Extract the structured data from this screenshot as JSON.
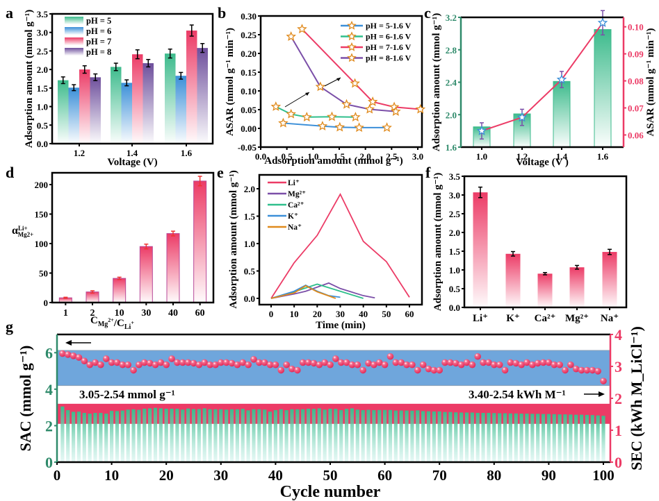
{
  "chart_data": [
    {
      "panel": "a",
      "type": "bar",
      "xlabel": "Voltage (V)",
      "ylabel": "Adsorption amount (mmol g⁻¹)",
      "categories": [
        "1.2",
        "1.4",
        "1.6"
      ],
      "ylim": [
        0,
        3.5
      ],
      "yticks": [
        "0.0",
        "0.5",
        "1.0",
        "1.5",
        "2.0",
        "2.5",
        "3.0",
        "3.5"
      ],
      "legend_position": "top-left",
      "series": [
        {
          "name": "pH = 5",
          "color": "#3dbb8c",
          "values": [
            1.71,
            2.07,
            2.43
          ],
          "errors": [
            0.09,
            0.1,
            0.12
          ]
        },
        {
          "name": "pH = 6",
          "color": "#3b8fd8",
          "values": [
            1.51,
            1.64,
            1.83
          ],
          "errors": [
            0.08,
            0.08,
            0.09
          ]
        },
        {
          "name": "pH = 7",
          "color": "#ec3b66",
          "values": [
            2.0,
            2.41,
            3.05
          ],
          "errors": [
            0.1,
            0.12,
            0.15
          ]
        },
        {
          "name": "pH = 8",
          "color": "#6e4f9c",
          "values": [
            1.79,
            2.17,
            2.58
          ],
          "errors": [
            0.09,
            0.1,
            0.12
          ]
        }
      ]
    },
    {
      "panel": "b",
      "type": "line",
      "xlabel": "Adsorption amount (mmol g⁻¹)",
      "ylabel": "ASAR (mmol g⁻¹ min⁻¹)",
      "xlim": [
        0,
        3.1
      ],
      "ylim": [
        -0.05,
        0.3
      ],
      "xticks": [
        "0.0",
        "0.5",
        "1.0",
        "1.5",
        "2.0",
        "2.5",
        "3.0"
      ],
      "yticks": [
        "-0.05",
        "0.00",
        "0.05",
        "0.10",
        "0.15",
        "0.20",
        "0.25",
        "0.30"
      ],
      "legend_position": "top-right",
      "marker_color": "#e08a1c",
      "series": [
        {
          "name": "pH = 5-1.6 V",
          "color": "#3b8fd8",
          "x": [
            0.43,
            1.18,
            1.51,
            1.88,
            2.41
          ],
          "y": [
            0.014,
            0.006,
            0.003,
            0.002,
            0.002
          ]
        },
        {
          "name": "pH = 6-1.6 V",
          "color": "#2fbf8c",
          "x": [
            0.29,
            0.58,
            0.88,
            1.36,
            1.81
          ],
          "y": [
            0.058,
            0.038,
            0.03,
            0.031,
            0.03
          ]
        },
        {
          "name": "pH = 7-1.6 V",
          "color": "#ec3b66",
          "x": [
            0.79,
            1.8,
            2.14,
            2.55,
            3.05
          ],
          "y": [
            0.265,
            0.12,
            0.071,
            0.057,
            0.051
          ]
        },
        {
          "name": "pH = 8-1.6 V",
          "color": "#7b4fa8",
          "x": [
            0.58,
            1.14,
            1.64,
            2.08,
            2.58
          ],
          "y": [
            0.245,
            0.111,
            0.064,
            0.051,
            0.045
          ]
        }
      ]
    },
    {
      "panel": "c",
      "type": "bar",
      "xlabel": "Voltage (V )",
      "ylabel": "Adsorption amount (mmol g⁻¹)",
      "ylabel_right": "ASAR (mmol g⁻¹ min⁻¹)",
      "categories": [
        "1.0",
        "1.2",
        "1.4",
        "1.6"
      ],
      "ylim": [
        1.6,
        3.2
      ],
      "yticks": [
        "1.6",
        "2.0",
        "2.4",
        "2.8",
        "3.2"
      ],
      "ylim_right": [
        0.0555,
        0.1035
      ],
      "yticks_right": [
        "0.06",
        "0.07",
        "0.08",
        "0.09",
        "0.10"
      ],
      "bar_color": "#3dbb8c",
      "line_color": "#ec3b66",
      "bars": [
        1.85,
        2.01,
        2.41,
        3.05
      ],
      "line_values": [
        0.0615,
        0.0665,
        0.0805,
        0.1015
      ],
      "line_errors": [
        0.003,
        0.003,
        0.003,
        0.0045
      ]
    },
    {
      "panel": "d",
      "type": "bar",
      "xlabel": "C_Mg2+/C_Li+",
      "ylabel": "α Li+/Mg2+",
      "categories": [
        "1",
        "2",
        "10",
        "30",
        "40",
        "60"
      ],
      "ylim": [
        0,
        215
      ],
      "yticks": [
        "0",
        "50",
        "100",
        "150",
        "200"
      ],
      "bar_color": "#ec3b66",
      "values": [
        8,
        18,
        41,
        95,
        117,
        206
      ],
      "errors": [
        1,
        2,
        2,
        4,
        4,
        8
      ]
    },
    {
      "panel": "e",
      "type": "line",
      "xlabel": "Time (min)",
      "ylabel": "Adsorption amount (mmol g⁻¹)",
      "xlim": [
        -3,
        65
      ],
      "ylim": [
        -0.05,
        2.3
      ],
      "xticks": [
        "0",
        "10",
        "20",
        "30",
        "40",
        "50",
        "60"
      ],
      "yticks": [
        "0.0",
        "0.5",
        "1.0",
        "1.5",
        "2.0"
      ],
      "legend_position": "top-left",
      "series": [
        {
          "name": "Li⁺",
          "color": "#ec3b66",
          "x": [
            0,
            10,
            20,
            30,
            40,
            50,
            60
          ],
          "y": [
            0,
            0.65,
            1.15,
            1.9,
            1.04,
            0.67,
            0.02
          ]
        },
        {
          "name": "Mg²⁺",
          "color": "#7b4fa8",
          "x": [
            0,
            10,
            15,
            25,
            30,
            40,
            45
          ],
          "y": [
            0,
            0.08,
            0.13,
            0.28,
            0.18,
            0.05,
            0.01
          ]
        },
        {
          "name": "Ca²⁺",
          "color": "#2fbf8c",
          "x": [
            0,
            10,
            20,
            30,
            40
          ],
          "y": [
            0,
            0.12,
            0.26,
            0.13,
            0.0
          ]
        },
        {
          "name": "K⁺",
          "color": "#3b8fd8",
          "x": [
            0,
            10,
            15,
            20,
            25,
            30
          ],
          "y": [
            0,
            0.13,
            0.24,
            0.13,
            0.05,
            0.02
          ]
        },
        {
          "name": "Na⁺",
          "color": "#e08a1c",
          "x": [
            0,
            10,
            15,
            20,
            28
          ],
          "y": [
            0,
            0.1,
            0.23,
            0.12,
            0.0
          ]
        }
      ]
    },
    {
      "panel": "f",
      "type": "bar",
      "xlabel": "",
      "ylabel": "Adsorption amount (mmol g⁻¹)",
      "categories": [
        "Li⁺",
        "K⁺",
        "Ca²⁺",
        "Mg²⁺",
        "Na⁺"
      ],
      "ylim": [
        0,
        3.5
      ],
      "yticks": [
        "0.0",
        "0.5",
        "1.0",
        "1.5",
        "2.0",
        "2.5",
        "3.0",
        "3.5"
      ],
      "bar_color": "#ec3b66",
      "values": [
        3.07,
        1.43,
        0.9,
        1.07,
        1.48
      ],
      "errors": [
        0.14,
        0.06,
        0.03,
        0.05,
        0.07
      ]
    },
    {
      "panel": "g",
      "type": "bar",
      "xlabel": "Cycle number",
      "ylabel": "SAC (mmol g⁻¹)",
      "ylabel_right": "SEC (kWh M_LiCl⁻¹)",
      "xlim": [
        0,
        101
      ],
      "xticks": [
        "0",
        "10",
        "20",
        "30",
        "40",
        "50",
        "60",
        "70",
        "80",
        "90",
        "100"
      ],
      "ylim": [
        0,
        7
      ],
      "yticks": [
        "0",
        "2",
        "4",
        "6"
      ],
      "ylim_right": [
        0,
        4
      ],
      "yticks_right": [
        "0",
        "1",
        "2",
        "3",
        "4"
      ],
      "annotation_left": "3.05-2.54 mmol g⁻¹",
      "annotation_right": "3.40-2.54 kWh M⁻¹",
      "band_colors": {
        "sec_band": "#6fa6dc",
        "sac_band": "#ec3b66",
        "bars": "#3dbb8c",
        "dots": "#ec3b66"
      },
      "sac_band": [
        2.1,
        3.2
      ],
      "sec_band_right": [
        2.4,
        3.5
      ],
      "sac_values": [
        3.05,
        2.85,
        2.76,
        2.77,
        2.7,
        2.66,
        2.7,
        2.7,
        2.66,
        2.81,
        2.8,
        2.83,
        2.88,
        2.9,
        2.87,
        2.93,
        2.95,
        2.98,
        2.95,
        2.93,
        2.93,
        2.93,
        2.88,
        2.94,
        2.91,
        2.91,
        2.95,
        2.9,
        2.9,
        2.9,
        2.88,
        2.9,
        2.9,
        2.92,
        2.84,
        2.9,
        2.9,
        2.88,
        2.77,
        2.85,
        2.9,
        2.85,
        2.9,
        2.9,
        2.9,
        2.93,
        2.92,
        2.95,
        2.88,
        2.93,
        2.92,
        2.85,
        2.92,
        2.95,
        2.88,
        2.85,
        2.87,
        2.85,
        2.86,
        2.86,
        2.86,
        2.83,
        2.83,
        2.83,
        2.82,
        2.84,
        2.8,
        2.79,
        2.78,
        2.78,
        2.75,
        2.75,
        2.73,
        2.72,
        2.72,
        2.72,
        2.7,
        2.7,
        2.7,
        2.69,
        2.68,
        2.68,
        2.67,
        2.67,
        2.66,
        2.66,
        2.65,
        2.65,
        2.64,
        2.64,
        2.63,
        2.62,
        2.62,
        2.61,
        2.6,
        2.6,
        2.59,
        2.58,
        2.56,
        2.54
      ],
      "sec_values": [
        3.4,
        3.37,
        3.33,
        3.28,
        3.17,
        3.05,
        3.12,
        3.05,
        3.24,
        3.12,
        3.12,
        3.05,
        3.05,
        2.88,
        3.05,
        3.12,
        3.1,
        3.05,
        3.12,
        3.05,
        3.24,
        3.12,
        3.12,
        3.12,
        3.1,
        3.05,
        3.12,
        3.05,
        3.05,
        3.12,
        3.12,
        3.1,
        3.05,
        3.12,
        3.05,
        3.22,
        3.12,
        3.12,
        3.05,
        3.05,
        2.88,
        3.05,
        2.92,
        2.88,
        3.12,
        3.12,
        3.1,
        3.05,
        3.12,
        3.05,
        3.24,
        3.12,
        3.12,
        3.05,
        3.05,
        2.88,
        3.1,
        3.05,
        3.12,
        3.05,
        3.31,
        3.12,
        3.12,
        3.05,
        3.05,
        2.88,
        3.05,
        2.92,
        2.88,
        2.88,
        3.12,
        3.12,
        3.1,
        3.05,
        3.12,
        3.05,
        3.31,
        3.12,
        3.12,
        3.05,
        3.05,
        2.88,
        3.12,
        3.1,
        3.05,
        3.12,
        3.05,
        3.1,
        3.12,
        3.12,
        3.05,
        3.05,
        2.88,
        3.05,
        2.92,
        2.88,
        2.88,
        2.88,
        2.85,
        2.54
      ]
    }
  ],
  "panel_labels": [
    "a",
    "b",
    "c",
    "d",
    "e",
    "f",
    "g"
  ],
  "legend_labels": {
    "a": [
      "pH = 5",
      "pH = 6",
      "pH = 7",
      "pH = 8"
    ],
    "b": [
      "pH = 5-1.6 V",
      "pH = 6-1.6 V",
      "pH = 7-1.6 V",
      "pH = 8-1.6 V"
    ],
    "e": [
      "Li⁺",
      "Mg²⁺",
      "Ca²⁺",
      "K⁺",
      "Na⁺"
    ]
  }
}
